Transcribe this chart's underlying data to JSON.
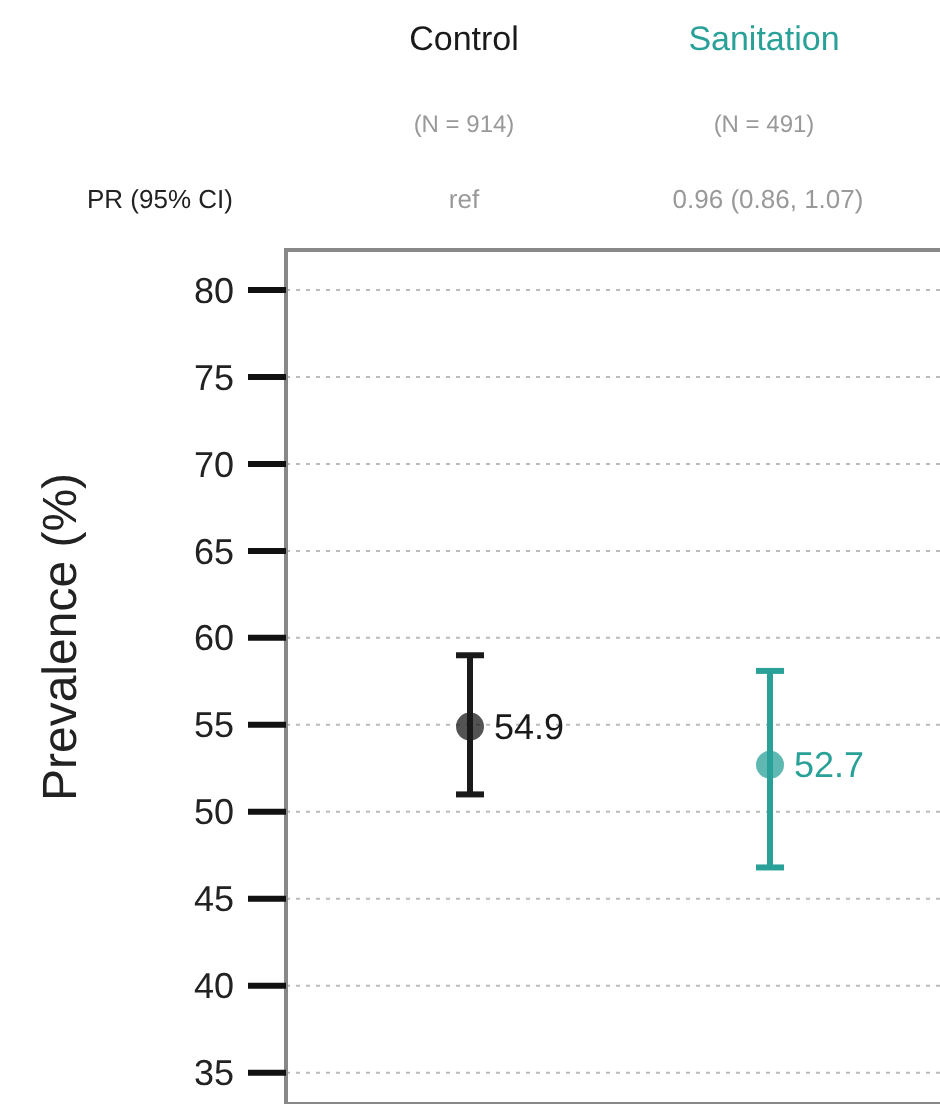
{
  "chart_data": {
    "type": "scatter",
    "categories": [
      "Control",
      "Sanitation"
    ],
    "values": [
      54.9,
      52.7
    ],
    "colors": [
      "#1a1a1a",
      "#2aa198"
    ],
    "errors": [
      [
        51.0,
        59.0
      ],
      [
        46.8,
        58.1
      ]
    ],
    "data_labels": true,
    "ylabel": "Prevalence (%)",
    "ylim": [
      33.2,
      82.3
    ],
    "yticks": [
      35,
      40,
      45,
      50,
      55,
      60,
      65,
      70,
      75,
      80
    ],
    "grid": "y",
    "marker": "circle",
    "annotations": [
      "(N = 914)",
      "(N = 491)",
      "PR (95% CI)",
      "ref",
      "0.96 (0.86, 1.07)"
    ]
  }
}
